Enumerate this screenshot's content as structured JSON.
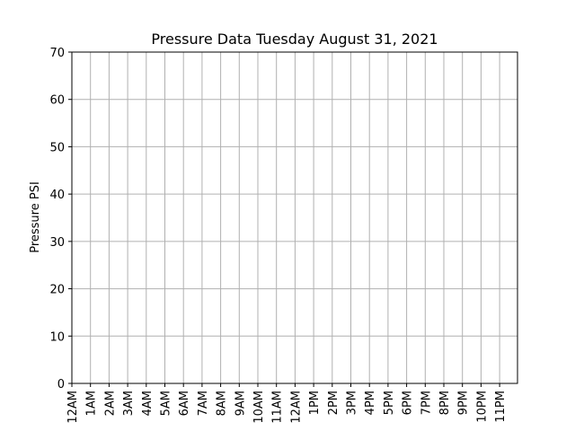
{
  "chart_data": {
    "type": "line",
    "title": "Pressure Data Tuesday August 31, 2021",
    "xlabel": "",
    "ylabel": "Pressure PSI",
    "categories": [
      "12AM",
      "1AM",
      "2AM",
      "3AM",
      "4AM",
      "5AM",
      "6AM",
      "7AM",
      "8AM",
      "9AM",
      "10AM",
      "11AM",
      "12AM",
      "1PM",
      "2PM",
      "3PM",
      "4PM",
      "5PM",
      "6PM",
      "7PM",
      "8PM",
      "9PM",
      "10PM",
      "11PM"
    ],
    "yticks": [
      "0",
      "10",
      "20",
      "30",
      "40",
      "50",
      "60",
      "70"
    ],
    "ylim": [
      0,
      70
    ],
    "grid": true,
    "series": [],
    "colors": {
      "grid": "#b0b0b0",
      "axes": "#000000",
      "background": "#ffffff"
    }
  }
}
